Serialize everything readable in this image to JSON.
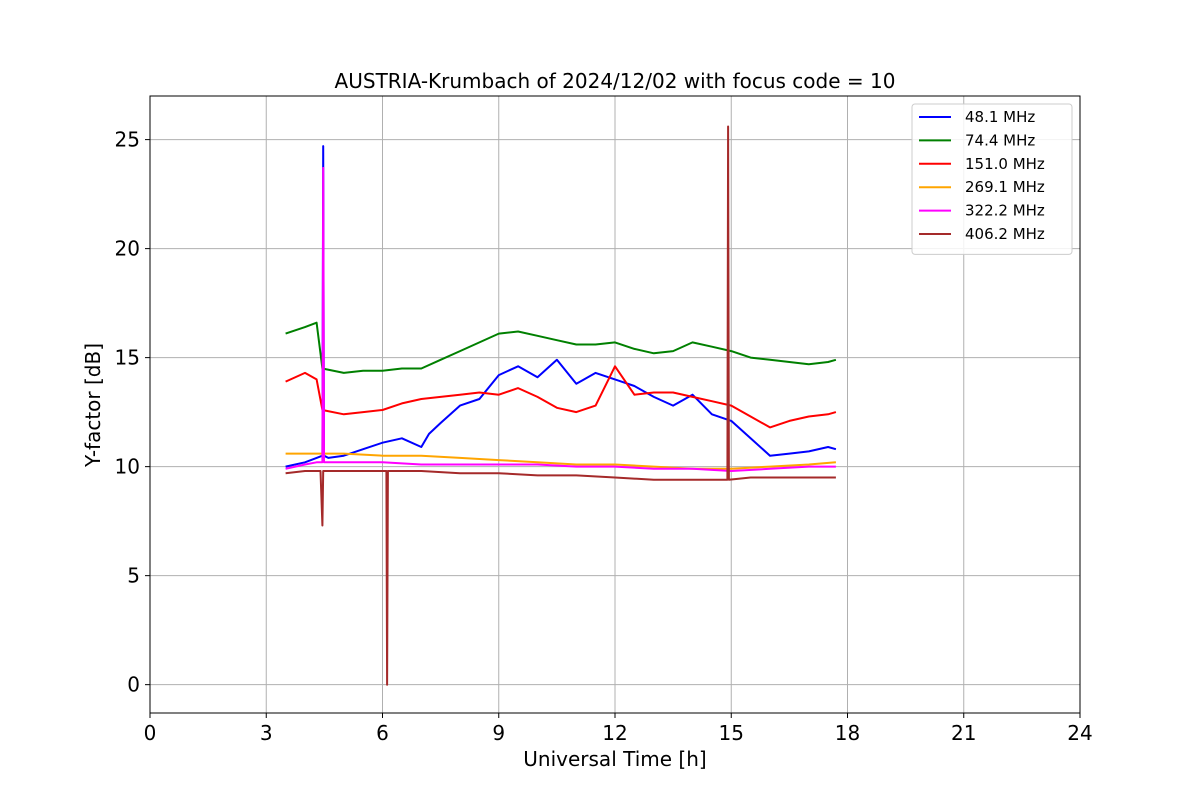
{
  "chart_data": {
    "type": "line",
    "title": "AUSTRIA-Krumbach of 2024/12/02 with focus code = 10",
    "xlabel": "Universal Time [h]",
    "ylabel": "Y-factor [dB]",
    "xlim": [
      0,
      24
    ],
    "ylim": [
      -1.3,
      27
    ],
    "xticks": [
      0,
      3,
      6,
      9,
      12,
      15,
      18,
      21,
      24
    ],
    "xtick_labels": [
      "0",
      "3",
      "6",
      "9",
      "12",
      "15",
      "18",
      "21",
      "24"
    ],
    "yticks": [
      0,
      5,
      10,
      15,
      20,
      25
    ],
    "ytick_labels": [
      "0",
      "5",
      "10",
      "15",
      "20",
      "25"
    ],
    "grid": true,
    "legend_position": "top-right",
    "series": [
      {
        "name": " 48.1 MHz",
        "color": "#0000ff",
        "x": [
          3.5,
          4.0,
          4.3,
          4.45,
          4.47,
          4.49,
          4.6,
          5.0,
          5.5,
          6.0,
          6.5,
          7.0,
          7.2,
          7.5,
          8.0,
          8.5,
          9.0,
          9.5,
          10.0,
          10.5,
          11.0,
          11.5,
          12.0,
          12.5,
          13.0,
          13.5,
          14.0,
          14.5,
          15.0,
          15.5,
          16.0,
          16.5,
          17.0,
          17.5,
          17.7
        ],
        "y": [
          10.0,
          10.2,
          10.4,
          10.5,
          24.7,
          10.5,
          10.4,
          10.5,
          10.8,
          11.1,
          11.3,
          10.9,
          11.5,
          12.0,
          12.8,
          13.1,
          14.2,
          14.6,
          14.1,
          14.9,
          13.8,
          14.3,
          14.0,
          13.7,
          13.2,
          12.8,
          13.3,
          12.4,
          12.1,
          11.3,
          10.5,
          10.6,
          10.7,
          10.9,
          10.8
        ]
      },
      {
        "name": " 74.4 MHz",
        "color": "#008000",
        "x": [
          3.5,
          4.0,
          4.3,
          4.45,
          5.0,
          5.5,
          6.0,
          6.5,
          7.0,
          7.5,
          8.0,
          8.5,
          9.0,
          9.5,
          10.0,
          10.5,
          11.0,
          11.5,
          12.0,
          12.5,
          13.0,
          13.5,
          14.0,
          14.5,
          15.0,
          15.5,
          16.0,
          16.5,
          17.0,
          17.5,
          17.7
        ],
        "y": [
          16.1,
          16.4,
          16.6,
          14.5,
          14.3,
          14.4,
          14.4,
          14.5,
          14.5,
          14.9,
          15.3,
          15.7,
          16.1,
          16.2,
          16.0,
          15.8,
          15.6,
          15.6,
          15.7,
          15.4,
          15.2,
          15.3,
          15.7,
          15.5,
          15.3,
          15.0,
          14.9,
          14.8,
          14.7,
          14.8,
          14.9
        ]
      },
      {
        "name": " 151.0 MHz",
        "color": "#ff0000",
        "x": [
          3.5,
          4.0,
          4.3,
          4.45,
          5.0,
          5.5,
          6.0,
          6.5,
          7.0,
          7.5,
          8.0,
          8.5,
          9.0,
          9.5,
          10.0,
          10.5,
          11.0,
          11.5,
          12.0,
          12.5,
          13.0,
          13.5,
          14.0,
          14.5,
          15.0,
          15.5,
          16.0,
          16.5,
          17.0,
          17.5,
          17.7
        ],
        "y": [
          13.9,
          14.3,
          14.0,
          12.6,
          12.4,
          12.5,
          12.6,
          12.9,
          13.1,
          13.2,
          13.3,
          13.4,
          13.3,
          13.6,
          13.2,
          12.7,
          12.5,
          12.8,
          14.6,
          13.3,
          13.4,
          13.4,
          13.2,
          13.0,
          12.8,
          12.3,
          11.8,
          12.1,
          12.3,
          12.4,
          12.5
        ]
      },
      {
        "name": " 269.1 MHz",
        "color": "#ffa500",
        "x": [
          3.5,
          4.0,
          4.3,
          4.45,
          5.0,
          6.0,
          7.0,
          8.0,
          9.0,
          10.0,
          11.0,
          12.0,
          13.0,
          14.0,
          15.0,
          16.0,
          17.0,
          17.7
        ],
        "y": [
          10.6,
          10.6,
          10.6,
          10.6,
          10.6,
          10.5,
          10.5,
          10.4,
          10.3,
          10.2,
          10.1,
          10.1,
          10.0,
          9.9,
          9.9,
          10.0,
          10.1,
          10.2
        ]
      },
      {
        "name": " 322.2 MHz",
        "color": "#ff00ff",
        "x": [
          3.5,
          4.0,
          4.3,
          4.45,
          4.47,
          4.49,
          5.0,
          6.0,
          7.0,
          8.0,
          9.0,
          10.0,
          11.0,
          12.0,
          13.0,
          14.0,
          15.0,
          16.0,
          17.0,
          17.7
        ],
        "y": [
          9.9,
          10.1,
          10.2,
          10.2,
          23.7,
          10.2,
          10.2,
          10.2,
          10.1,
          10.1,
          10.1,
          10.1,
          10.0,
          10.0,
          9.9,
          9.9,
          9.8,
          9.9,
          10.0,
          10.0
        ]
      },
      {
        "name": " 406.2 MHz",
        "color": "#a52a2a",
        "x": [
          3.5,
          4.0,
          4.4,
          4.45,
          4.47,
          4.6,
          5.0,
          6.0,
          6.1,
          6.12,
          6.14,
          7.0,
          8.0,
          9.0,
          10.0,
          11.0,
          12.0,
          13.0,
          14.0,
          14.9,
          14.92,
          14.94,
          15.5,
          16.0,
          17.0,
          17.7
        ],
        "y": [
          9.7,
          9.8,
          9.8,
          7.3,
          9.8,
          9.8,
          9.8,
          9.8,
          9.8,
          0.0,
          9.8,
          9.8,
          9.7,
          9.7,
          9.6,
          9.6,
          9.5,
          9.4,
          9.4,
          9.4,
          25.6,
          9.4,
          9.5,
          9.5,
          9.5,
          9.5
        ]
      }
    ]
  }
}
